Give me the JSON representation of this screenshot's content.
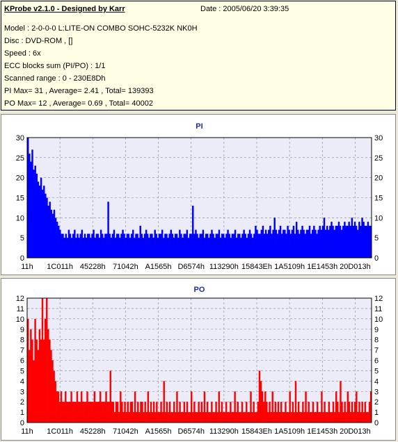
{
  "header": {
    "title": "KProbe v2.1.0 - Designed by Karr",
    "date": "Date : 2005/06/20 3:39:35"
  },
  "info_lines": [
    "Model : 2-0-0-0 L:LITE-ON COMBO SOHC-5232K NK0H",
    "Disc : DVD-ROM ,  []",
    "Speed : 6x",
    "ECC blocks sum (PI/PO) : 1/1",
    "Scanned range : 0 - 230E8Dh",
    "PI Max= 31 , Average= 2.41 , Total= 139393",
    "PO Max= 12 , Average= 0.69 , Total= 40002"
  ],
  "colors": {
    "pi": "#0000ff",
    "po": "#ff0000",
    "plot_bg": "#ececf8",
    "grid": "#8080a0",
    "title": "#1d2aa6"
  },
  "chart_data": [
    {
      "type": "bar",
      "title": "PI",
      "xlabel": "",
      "ylabel": "",
      "x_ticks": [
        "11h",
        "1C011h",
        "45228h",
        "71042h",
        "A1565h",
        "D6574h",
        "113290h",
        "15843Eh",
        "1A5109h",
        "1E1453h",
        "20D013h"
      ],
      "ylim": [
        0,
        30
      ],
      "y_ticks": [
        0,
        5,
        10,
        15,
        20,
        25,
        30
      ],
      "grid": true,
      "series": [
        {
          "values": [
            30,
            26,
            24,
            27,
            22,
            23,
            21,
            19,
            18,
            20,
            17,
            18,
            16,
            15,
            13,
            14,
            12,
            11,
            12,
            10,
            9,
            8,
            7,
            6,
            6,
            5,
            6,
            5,
            7,
            6,
            5,
            6,
            7,
            5,
            6,
            5,
            6,
            7,
            5,
            6,
            5,
            6,
            6,
            5,
            6,
            7,
            5,
            6,
            6,
            5,
            7,
            6,
            5,
            6,
            6,
            14,
            6,
            5,
            6,
            7,
            5,
            6,
            6,
            5,
            6,
            7,
            6,
            5,
            6,
            6,
            5,
            6,
            7,
            5,
            6,
            6,
            5,
            8,
            6,
            5,
            6,
            7,
            6,
            5,
            6,
            6,
            5,
            7,
            6,
            5,
            6,
            6,
            7,
            5,
            6,
            6,
            5,
            6,
            7,
            6,
            5,
            6,
            6,
            5,
            7,
            6,
            5,
            6,
            6,
            7,
            5,
            6,
            6,
            13,
            6,
            7,
            6,
            5,
            6,
            6,
            7,
            5,
            6,
            6,
            5,
            6,
            7,
            6,
            5,
            6,
            6,
            7,
            5,
            6,
            6,
            5,
            6,
            7,
            6,
            5,
            6,
            6,
            7,
            5,
            6,
            6,
            5,
            6,
            7,
            6,
            5,
            6,
            7,
            6,
            5,
            6,
            8,
            7,
            6,
            6,
            7,
            8,
            6,
            7,
            6,
            7,
            8,
            6,
            7,
            10,
            7,
            6,
            7,
            8,
            6,
            7,
            7,
            6,
            8,
            7,
            6,
            7,
            8,
            6,
            9,
            7,
            6,
            7,
            8,
            7,
            6,
            7,
            7,
            8,
            6,
            7,
            8,
            7,
            6,
            7,
            8,
            7,
            8,
            10,
            7,
            8,
            7,
            8,
            9,
            8,
            7,
            8,
            8,
            9,
            8,
            7,
            8,
            9,
            8,
            8,
            9,
            8,
            10,
            8,
            9,
            8,
            7,
            9,
            8,
            10,
            9,
            8,
            8,
            9,
            8,
            8
          ]
        }
      ]
    },
    {
      "type": "bar",
      "title": "PO",
      "xlabel": "",
      "ylabel": "",
      "x_ticks": [
        "11h",
        "1C011h",
        "45228h",
        "71042h",
        "A1565h",
        "D6574h",
        "113290h",
        "15843Eh",
        "1A5109h",
        "1E1453h",
        "20D013h"
      ],
      "ylim": [
        0,
        12
      ],
      "y_ticks": [
        0,
        1,
        2,
        3,
        4,
        5,
        6,
        7,
        8,
        9,
        10,
        11,
        12
      ],
      "grid": true,
      "series": [
        {
          "values": [
            10,
            7,
            9,
            8,
            6,
            10,
            8,
            7,
            9,
            8,
            12,
            8,
            10,
            12,
            9,
            8,
            7,
            6,
            5,
            4,
            3,
            3,
            2,
            3,
            2,
            2,
            3,
            2,
            2,
            2,
            3,
            2,
            2,
            2,
            3,
            2,
            2,
            3,
            2,
            2,
            2,
            3,
            2,
            2,
            2,
            2,
            3,
            2,
            2,
            2,
            3,
            2,
            2,
            2,
            3,
            2,
            2,
            5,
            2,
            2,
            1,
            2,
            2,
            1,
            3,
            2,
            1,
            2,
            1,
            2,
            1,
            2,
            2,
            1,
            3,
            1,
            2,
            1,
            2,
            2,
            1,
            2,
            1,
            3,
            1,
            2,
            1,
            2,
            1,
            2,
            1,
            1,
            2,
            1,
            4,
            1,
            2,
            1,
            2,
            1,
            1,
            2,
            1,
            3,
            1,
            2,
            1,
            1,
            2,
            1,
            2,
            1,
            1,
            3,
            1,
            2,
            1,
            1,
            2,
            1,
            2,
            1,
            3,
            1,
            2,
            1,
            1,
            2,
            1,
            1,
            2,
            1,
            3,
            1,
            2,
            1,
            1,
            2,
            1,
            1,
            2,
            1,
            1,
            3,
            1,
            2,
            1,
            1,
            2,
            1,
            1,
            2,
            1,
            1,
            3,
            1,
            2,
            1,
            1,
            2,
            5,
            4,
            3,
            2,
            3,
            2,
            1,
            2,
            1,
            3,
            1,
            2,
            1,
            2,
            1,
            2,
            1,
            1,
            2,
            1,
            1,
            3,
            1,
            2,
            1,
            4,
            1,
            2,
            1,
            1,
            2,
            1,
            3,
            1,
            2,
            1,
            1,
            2,
            1,
            1,
            2,
            1,
            1,
            3,
            1,
            2,
            1,
            1,
            2,
            1,
            1,
            2,
            1,
            3,
            2,
            1,
            4,
            2,
            1,
            2,
            1,
            3,
            2,
            1,
            2,
            1,
            2,
            3,
            1,
            2,
            1,
            2,
            1,
            2,
            1,
            1,
            2,
            3
          ]
        }
      ]
    }
  ]
}
